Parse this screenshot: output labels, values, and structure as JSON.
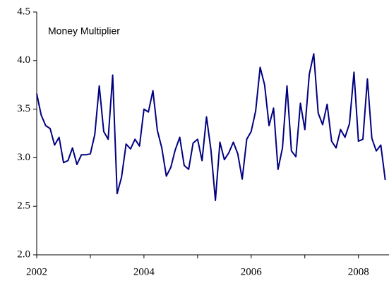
{
  "chart_data": {
    "type": "line",
    "annotation": "Money Multiplier",
    "x": [
      2002,
      2002.083,
      2002.167,
      2002.25,
      2002.333,
      2002.417,
      2002.5,
      2002.583,
      2002.667,
      2002.75,
      2002.833,
      2002.917,
      2003,
      2003.083,
      2003.167,
      2003.25,
      2003.333,
      2003.417,
      2003.5,
      2003.583,
      2003.667,
      2003.75,
      2003.833,
      2003.917,
      2004,
      2004.083,
      2004.167,
      2004.25,
      2004.333,
      2004.417,
      2004.5,
      2004.583,
      2004.667,
      2004.75,
      2004.833,
      2004.917,
      2005,
      2005.083,
      2005.167,
      2005.25,
      2005.333,
      2005.417,
      2005.5,
      2005.583,
      2005.667,
      2005.75,
      2005.833,
      2005.917,
      2006,
      2006.083,
      2006.167,
      2006.25,
      2006.333,
      2006.417,
      2006.5,
      2006.583,
      2006.667,
      2006.75,
      2006.833,
      2006.917,
      2007,
      2007.083,
      2007.167,
      2007.25,
      2007.333,
      2007.417,
      2007.5,
      2007.583,
      2007.667,
      2007.75,
      2007.833,
      2007.917,
      2008,
      2008.083,
      2008.167,
      2008.25,
      2008.333,
      2008.417,
      2008.5
    ],
    "series": [
      {
        "name": "Money Multiplier",
        "color": "#000080",
        "values": [
          3.66,
          3.44,
          3.33,
          3.3,
          3.13,
          3.21,
          2.95,
          2.97,
          3.1,
          2.93,
          3.03,
          3.03,
          3.04,
          3.24,
          3.74,
          3.27,
          3.19,
          3.85,
          2.63,
          2.8,
          3.14,
          3.09,
          3.19,
          3.12,
          3.5,
          3.47,
          3.69,
          3.28,
          3.1,
          2.81,
          2.9,
          3.08,
          3.21,
          2.92,
          2.88,
          3.15,
          3.19,
          2.97,
          3.42,
          3.08,
          2.56,
          3.16,
          2.98,
          3.05,
          3.16,
          3.04,
          2.78,
          3.19,
          3.27,
          3.48,
          3.93,
          3.75,
          3.33,
          3.51,
          2.88,
          3.1,
          3.74,
          3.07,
          3.01,
          3.56,
          3.29,
          3.86,
          4.07,
          3.46,
          3.34,
          3.55,
          3.17,
          3.1,
          3.29,
          3.21,
          3.35,
          3.88,
          3.17,
          3.19,
          3.81,
          3.2,
          3.07,
          3.13,
          2.77
        ]
      }
    ],
    "xlim": [
      2002,
      2008.57
    ],
    "xticks": [
      2002,
      2004,
      2006,
      2008
    ],
    "xminor": [
      2003,
      2005,
      2007
    ],
    "ylim": [
      2,
      4.5
    ],
    "yticks": [
      {
        "value": 2,
        "label": "2.0"
      },
      {
        "value": 2.5,
        "label": "2.5"
      },
      {
        "value": 3,
        "label": "3.0"
      },
      {
        "value": 3.5,
        "label": "3.5"
      },
      {
        "value": 4,
        "label": "4.0"
      },
      {
        "value": 4.5,
        "label": "4.5"
      }
    ]
  }
}
